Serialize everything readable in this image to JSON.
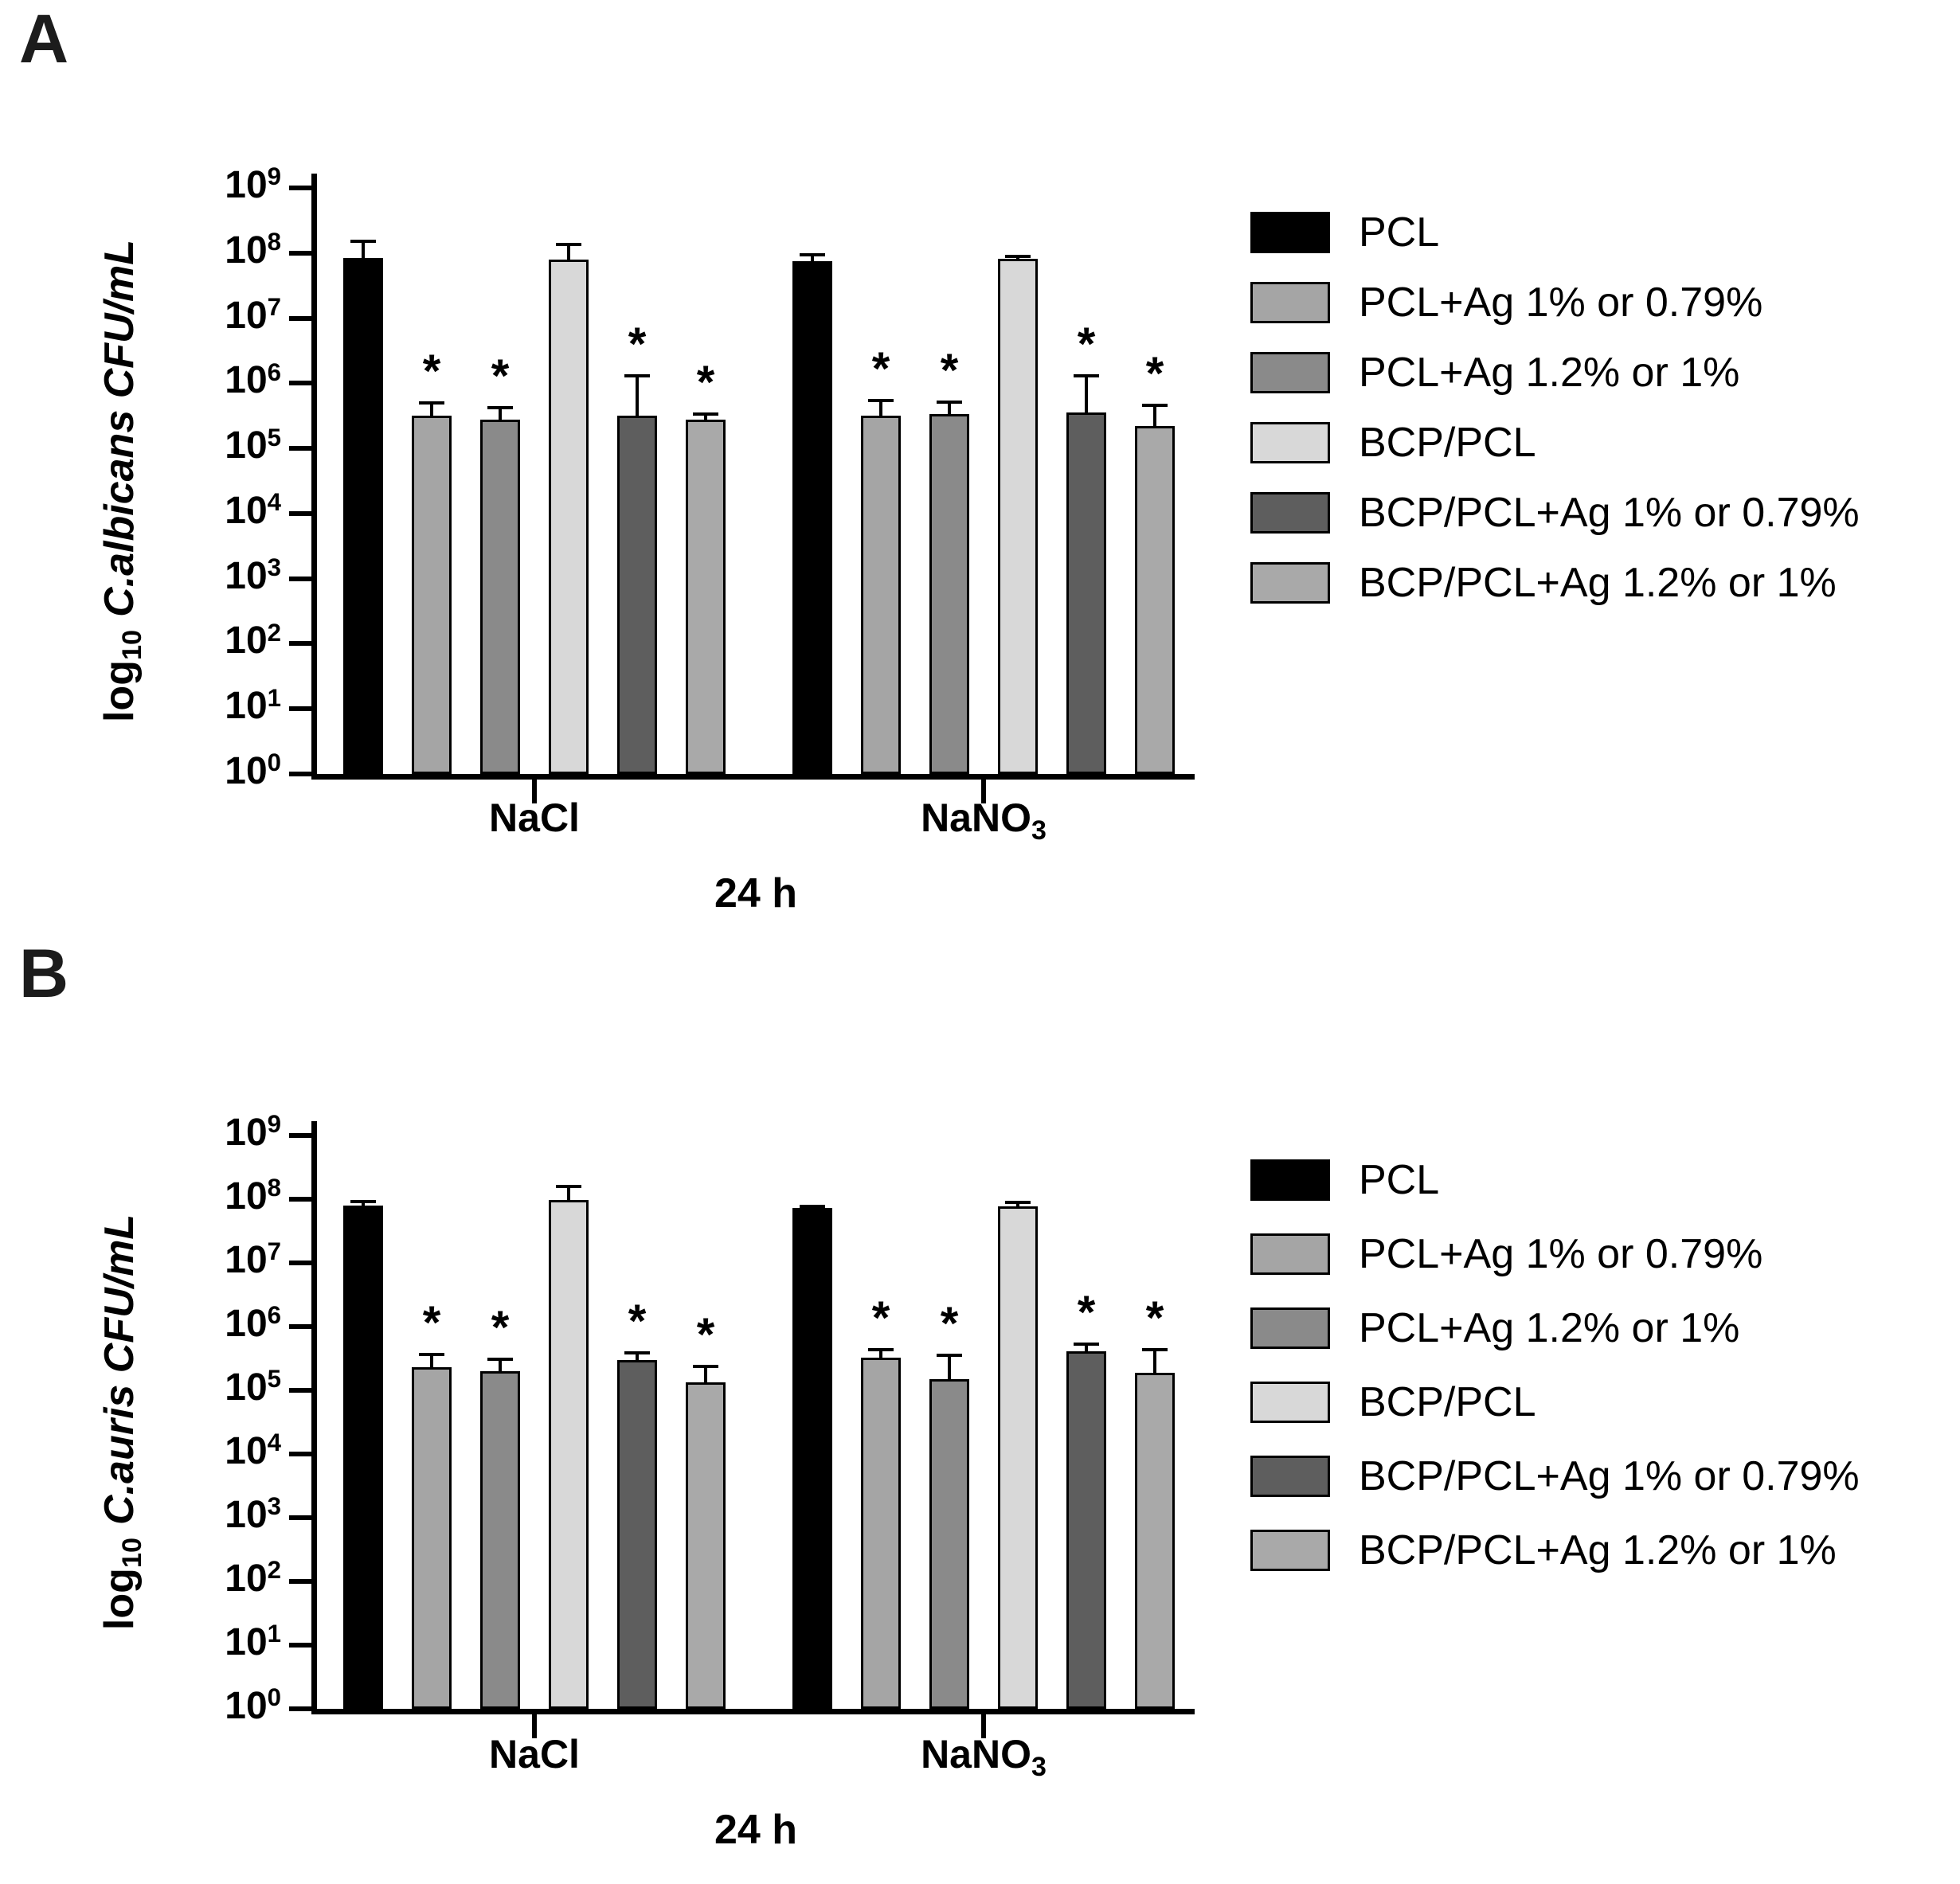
{
  "sig_symbol": "*",
  "ytick_base": "10",
  "chart_data": [
    {
      "type": "bar",
      "panel_label": "A",
      "yscale": "log10",
      "ylim": [
        1,
        1000000000
      ],
      "ytick_exponents": [
        9,
        8,
        7,
        6,
        5,
        4,
        3,
        2,
        1,
        0
      ],
      "ylabel_parts": {
        "prefix": "log",
        "sub": "10",
        "species_units": "C.albicans CFU/mL"
      },
      "xlabel": "24 h",
      "categories": [
        {
          "label": "NaCl",
          "sub": ""
        },
        {
          "label": "NaNO",
          "sub": "3"
        }
      ],
      "grid": false,
      "legend_position": "right",
      "series": [
        {
          "name": "PCL",
          "color": "#000000",
          "values": [
            85000000,
            75000000
          ],
          "err_top": [
            150000000,
            95000000
          ],
          "sig": [
            false,
            false
          ]
        },
        {
          "name": "PCL+Ag 1% or 0.79%",
          "color": "#a5a5a5",
          "values": [
            320000,
            320000
          ],
          "err_top": [
            500000,
            550000
          ],
          "sig": [
            true,
            true
          ]
        },
        {
          "name": "PCL+Ag 1.2% or 1%",
          "color": "#8a8a8a",
          "values": [
            280000,
            340000
          ],
          "err_top": [
            420000,
            520000
          ],
          "sig": [
            true,
            true
          ]
        },
        {
          "name": "BCP/PCL",
          "color": "#d8d8d8",
          "values": [
            80000000,
            82000000
          ],
          "err_top": [
            135000000,
            90000000
          ],
          "sig": [
            false,
            false
          ]
        },
        {
          "name": "BCP/PCL+Ag 1% or 0.79%",
          "color": "#5e5e5e",
          "values": [
            320000,
            360000
          ],
          "err_top": [
            1300000,
            1300000
          ],
          "sig": [
            true,
            true
          ]
        },
        {
          "name": "BCP/PCL+Ag 1.2% or 1%",
          "color": "#a9a9a9",
          "values": [
            280000,
            220000
          ],
          "err_top": [
            340000,
            460000
          ],
          "sig": [
            true,
            true
          ]
        }
      ]
    },
    {
      "type": "bar",
      "panel_label": "B",
      "yscale": "log10",
      "ylim": [
        1,
        1000000000
      ],
      "ytick_exponents": [
        9,
        8,
        7,
        6,
        5,
        4,
        3,
        2,
        1,
        0
      ],
      "ylabel_parts": {
        "prefix": "log",
        "sub": "10",
        "species_units": "C.auris CFU/mL"
      },
      "xlabel": "24 h",
      "categories": [
        {
          "label": "NaCl",
          "sub": ""
        },
        {
          "label": "NaNO",
          "sub": "3"
        }
      ],
      "grid": false,
      "legend_position": "right",
      "series": [
        {
          "name": "PCL",
          "color": "#000000",
          "values": [
            80000000,
            72000000
          ],
          "err_top": [
            92000000,
            78000000
          ],
          "sig": [
            false,
            false
          ]
        },
        {
          "name": "PCL+Ag 1% or 0.79%",
          "color": "#a5a5a5",
          "values": [
            230000,
            330000
          ],
          "err_top": [
            370000,
            430000
          ],
          "sig": [
            true,
            true
          ]
        },
        {
          "name": "PCL+Ag 1.2% or 1%",
          "color": "#8a8a8a",
          "values": [
            200000,
            150000
          ],
          "err_top": [
            310000,
            350000
          ],
          "sig": [
            true,
            true
          ]
        },
        {
          "name": "BCP/PCL",
          "color": "#d8d8d8",
          "values": [
            98000000,
            78000000
          ],
          "err_top": [
            160000000,
            88000000
          ],
          "sig": [
            false,
            false
          ]
        },
        {
          "name": "BCP/PCL+Ag 1% or 0.79%",
          "color": "#5e5e5e",
          "values": [
            300000,
            410000
          ],
          "err_top": [
            390000,
            530000
          ],
          "sig": [
            true,
            true
          ]
        },
        {
          "name": "BCP/PCL+Ag 1.2% or 1%",
          "color": "#a9a9a9",
          "values": [
            135000,
            190000
          ],
          "err_top": [
            240000,
            430000
          ],
          "sig": [
            true,
            true
          ]
        }
      ]
    }
  ]
}
